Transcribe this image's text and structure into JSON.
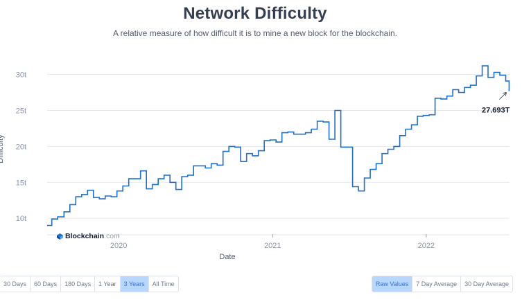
{
  "header": {
    "title": "Network Difficulty",
    "subtitle": "A relative measure of how difficult it is to mine a new block for the blockchain."
  },
  "watermark": {
    "brand": "Blockchain",
    "suffix": ".com"
  },
  "time_buttons": [
    {
      "label": "30 Days",
      "active": false
    },
    {
      "label": "60 Days",
      "active": false
    },
    {
      "label": "180 Days",
      "active": false
    },
    {
      "label": "1 Year",
      "active": false
    },
    {
      "label": "3 Years",
      "active": true
    },
    {
      "label": "All Time",
      "active": false
    }
  ],
  "avg_buttons": [
    {
      "label": "Raw Values",
      "active": true
    },
    {
      "label": "7 Day Average",
      "active": false
    },
    {
      "label": "30 Day Average",
      "active": false
    }
  ],
  "colors": {
    "line": "#1d6fd1",
    "grid": "#e6e9ef",
    "axis_text": "#8a93a5",
    "active_btn": "#b8d7ff"
  },
  "chart_data": {
    "type": "line",
    "title": "Network Difficulty",
    "subtitle": "A relative measure of how difficult it is to mine a new block for the blockchain.",
    "xlabel": "Date",
    "ylabel": "Difficulty",
    "yticks": [
      "10t",
      "15t",
      "20t",
      "25t",
      "30t"
    ],
    "ytick_values": [
      10,
      15,
      20,
      25,
      30
    ],
    "xticks": [
      "2020",
      "2021",
      "2022"
    ],
    "xtick_dates": [
      "2020-01-01",
      "2021-01-01",
      "2022-01-01"
    ],
    "ylim": [
      7.8,
      31.5
    ],
    "xlim": [
      "2019-07-15",
      "2022-07-18"
    ],
    "grid": true,
    "annotation": {
      "label": "27.693T",
      "date": "2022-07-17",
      "value": 27.693
    },
    "series": [
      {
        "step": true,
        "x": [
          "2019-07-15",
          "2019-07-26",
          "2019-08-09",
          "2019-08-24",
          "2019-09-07",
          "2019-09-21",
          "2019-10-05",
          "2019-10-19",
          "2019-11-02",
          "2019-11-16",
          "2019-11-30",
          "2019-12-14",
          "2019-12-28",
          "2020-01-11",
          "2020-01-25",
          "2020-02-08",
          "2020-02-22",
          "2020-03-07",
          "2020-03-21",
          "2020-04-04",
          "2020-04-18",
          "2020-05-02",
          "2020-05-16",
          "2020-05-30",
          "2020-06-13",
          "2020-06-27",
          "2020-07-11",
          "2020-07-25",
          "2020-08-08",
          "2020-08-22",
          "2020-09-05",
          "2020-09-19",
          "2020-10-03",
          "2020-10-17",
          "2020-10-31",
          "2020-11-14",
          "2020-11-28",
          "2020-12-12",
          "2020-12-26",
          "2021-01-09",
          "2021-01-23",
          "2021-02-06",
          "2021-02-20",
          "2021-03-06",
          "2021-03-20",
          "2021-04-03",
          "2021-04-17",
          "2021-05-01",
          "2021-05-15",
          "2021-05-29",
          "2021-06-12",
          "2021-06-26",
          "2021-07-10",
          "2021-07-24",
          "2021-08-07",
          "2021-08-21",
          "2021-09-04",
          "2021-09-18",
          "2021-10-02",
          "2021-10-16",
          "2021-10-30",
          "2021-11-13",
          "2021-11-27",
          "2021-12-11",
          "2021-12-25",
          "2022-01-08",
          "2022-01-22",
          "2022-02-05",
          "2022-02-19",
          "2022-03-05",
          "2022-03-19",
          "2022-04-02",
          "2022-04-16",
          "2022-04-30",
          "2022-05-14",
          "2022-05-28",
          "2022-06-11",
          "2022-06-25",
          "2022-07-09",
          "2022-07-17"
        ],
        "values": [
          9.0,
          9.9,
          10.2,
          10.9,
          11.9,
          13.0,
          13.3,
          13.9,
          12.9,
          12.7,
          13.1,
          13.0,
          13.8,
          14.5,
          15.5,
          15.5,
          16.6,
          14.1,
          14.7,
          15.5,
          16.0,
          15.0,
          14.0,
          15.8,
          16.0,
          17.3,
          17.3,
          17.0,
          17.6,
          17.4,
          19.3,
          20.0,
          19.9,
          17.9,
          19.0,
          18.7,
          19.4,
          20.8,
          20.9,
          20.6,
          21.9,
          22.0,
          21.7,
          21.7,
          21.9,
          22.4,
          23.5,
          23.4,
          21.0,
          25.0,
          19.9,
          19.9,
          14.4,
          13.8,
          15.6,
          16.8,
          17.6,
          19.0,
          19.6,
          20.0,
          21.5,
          22.4,
          23.0,
          24.2,
          24.3,
          24.4,
          26.7,
          26.6,
          27.0,
          27.9,
          27.5,
          28.2,
          28.5,
          29.8,
          31.2,
          29.6,
          30.3,
          29.9,
          29.1,
          27.693
        ]
      }
    ]
  }
}
